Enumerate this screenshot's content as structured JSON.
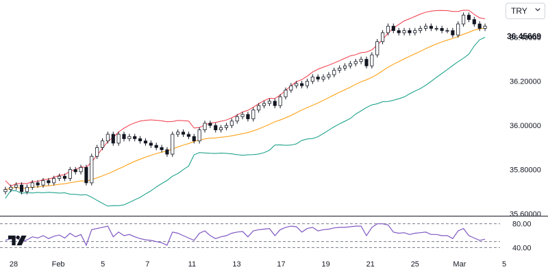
{
  "currency_selector": {
    "value": "TRY",
    "icon": "chevron-down-icon"
  },
  "logo": {
    "icon": "tradingview-logo-icon"
  },
  "last_price_label": "36.45669",
  "colors": {
    "up": "#ffffff",
    "down": "#131722",
    "wick": "#131722",
    "upper_band": "#f23645",
    "middle_band": "#ff9800",
    "lower_band": "#089981",
    "rsi": "#7e57c2",
    "divider": "#131722"
  },
  "chart_data": [
    {
      "type": "candlestick",
      "title": "",
      "indicators": [
        "Bollinger Bands (upper)",
        "Bollinger Bands (basis)",
        "Bollinger Bands (lower)"
      ],
      "x_tick_labels": [
        "28",
        "Feb",
        "5",
        "7",
        "11",
        "13",
        "17",
        "19",
        "21",
        "25",
        "Mar",
        "5"
      ],
      "y_tick_labels": [
        "36.40000",
        "36.20000",
        "36.00000",
        "35.80000",
        "35.60000"
      ],
      "ylim": [
        35.6,
        36.55
      ],
      "grid": false,
      "series_points": 90,
      "close": [
        35.71,
        35.72,
        35.73,
        35.7,
        35.72,
        35.74,
        35.73,
        35.75,
        35.74,
        35.76,
        35.77,
        35.76,
        35.8,
        35.79,
        35.81,
        35.74,
        35.86,
        35.9,
        35.93,
        35.96,
        35.92,
        35.96,
        35.94,
        35.95,
        35.94,
        35.93,
        35.92,
        35.91,
        35.9,
        35.89,
        35.87,
        35.96,
        35.97,
        35.96,
        35.95,
        35.93,
        35.98,
        36.01,
        36.0,
        35.98,
        35.99,
        36.0,
        36.02,
        36.04,
        36.05,
        36.03,
        36.07,
        36.09,
        36.1,
        36.11,
        36.09,
        36.13,
        36.16,
        36.18,
        36.19,
        36.18,
        36.2,
        36.22,
        36.21,
        36.22,
        36.23,
        36.25,
        36.26,
        36.27,
        36.28,
        36.29,
        36.3,
        36.27,
        36.32,
        36.38,
        36.42,
        36.45,
        36.43,
        36.42,
        36.43,
        36.42,
        36.43,
        36.44,
        36.45,
        36.44,
        36.44,
        36.43,
        36.43,
        36.41,
        36.46,
        36.5,
        36.48,
        36.46,
        36.44,
        36.45
      ]
    },
    {
      "type": "line",
      "title": "",
      "indicator": "RSI",
      "y_tick_labels": [
        "80.00",
        "40.00"
      ],
      "reference_levels": [
        80,
        50,
        40
      ],
      "ylim": [
        30,
        90
      ],
      "values": [
        52,
        55,
        57,
        50,
        53,
        58,
        56,
        60,
        55,
        59,
        61,
        56,
        64,
        58,
        62,
        44,
        70,
        72,
        74,
        76,
        58,
        66,
        60,
        62,
        58,
        55,
        53,
        52,
        50,
        48,
        44,
        66,
        64,
        60,
        56,
        52,
        64,
        68,
        60,
        55,
        58,
        60,
        64,
        66,
        67,
        58,
        68,
        70,
        71,
        72,
        60,
        70,
        74,
        76,
        75,
        66,
        72,
        74,
        68,
        70,
        71,
        73,
        74,
        74,
        75,
        76,
        76,
        60,
        74,
        80,
        80,
        78,
        66,
        64,
        65,
        62,
        64,
        65,
        66,
        62,
        62,
        60,
        60,
        55,
        68,
        72,
        60,
        56,
        52,
        54
      ]
    }
  ]
}
